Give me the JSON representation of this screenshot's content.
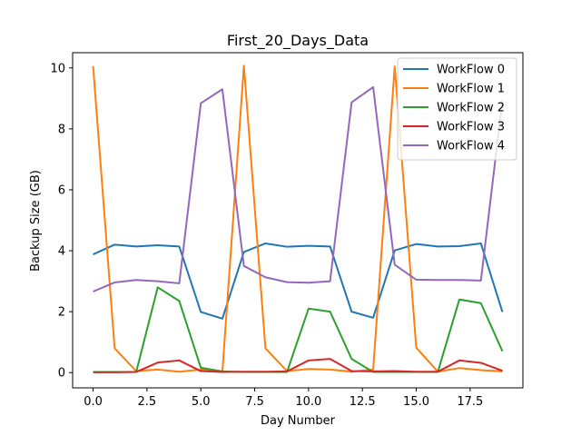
{
  "chart_data": {
    "type": "line",
    "title": "First_20_Days_Data",
    "xlabel": "Day Number",
    "ylabel": "Backup Size (GB)",
    "x": [
      0,
      1,
      2,
      3,
      4,
      5,
      6,
      7,
      8,
      9,
      10,
      11,
      12,
      13,
      14,
      15,
      16,
      17,
      18,
      19
    ],
    "xlim": [
      -0.95,
      19.95
    ],
    "ylim": [
      -0.5,
      10.5
    ],
    "xticks": [
      0.0,
      2.5,
      5.0,
      7.5,
      10.0,
      12.5,
      15.0,
      17.5
    ],
    "xtick_labels": [
      "0.0",
      "2.5",
      "5.0",
      "7.5",
      "10.0",
      "12.5",
      "15.0",
      "17.5"
    ],
    "yticks": [
      0,
      2,
      4,
      6,
      8,
      10
    ],
    "ytick_labels": [
      "0",
      "2",
      "4",
      "6",
      "8",
      "10"
    ],
    "grid": false,
    "legend_position": "top-right",
    "series": [
      {
        "name": "WorkFlow 0",
        "color": "#1f77b4",
        "values": [
          3.88,
          4.2,
          4.14,
          4.18,
          4.14,
          1.99,
          1.77,
          3.96,
          4.24,
          4.13,
          4.16,
          4.14,
          2.0,
          1.8,
          4.01,
          4.22,
          4.14,
          4.15,
          4.24,
          1.99
        ]
      },
      {
        "name": "WorkFlow 1",
        "color": "#ff7f0e",
        "values": [
          10.06,
          0.8,
          0.05,
          0.1,
          0.03,
          0.1,
          0.02,
          10.07,
          0.8,
          0.05,
          0.12,
          0.1,
          0.03,
          0.1,
          10.05,
          0.82,
          0.03,
          0.15,
          0.08,
          0.04
        ]
      },
      {
        "name": "WorkFlow 2",
        "color": "#2ca02c",
        "values": [
          0.02,
          0.02,
          0.02,
          2.8,
          2.35,
          0.16,
          0.04,
          0.02,
          0.02,
          0.02,
          2.1,
          2.0,
          0.45,
          0.02,
          0.02,
          0.02,
          0.02,
          2.4,
          2.28,
          0.7
        ]
      },
      {
        "name": "WorkFlow 3",
        "color": "#d62728",
        "values": [
          0.01,
          0.01,
          0.02,
          0.33,
          0.4,
          0.05,
          0.02,
          0.03,
          0.03,
          0.04,
          0.4,
          0.45,
          0.05,
          0.04,
          0.05,
          0.03,
          0.03,
          0.4,
          0.32,
          0.06
        ]
      },
      {
        "name": "WorkFlow 4",
        "color": "#9467bd",
        "values": [
          2.66,
          2.96,
          3.04,
          3.0,
          2.93,
          8.84,
          9.3,
          3.5,
          3.13,
          2.97,
          2.95,
          3.0,
          8.87,
          9.37,
          3.54,
          3.05,
          3.04,
          3.04,
          3.02,
          8.94
        ]
      }
    ]
  }
}
